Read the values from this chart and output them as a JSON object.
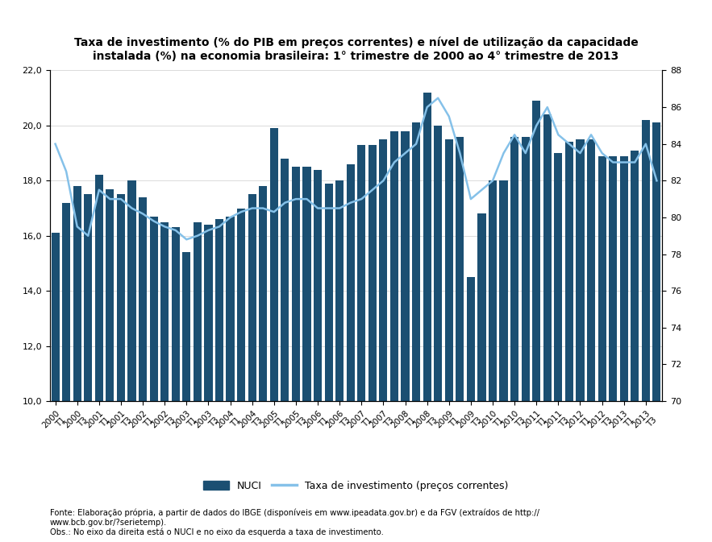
{
  "title": "Taxa de investimento (% do PIB em preços correntes) e nível de utilização da capacidade\ninstalada (%) na economia brasileira: 1° trimestre de 2000 ao 4° trimestre de 2013",
  "bar_color": "#1b4f72",
  "line_color": "#85c1e9",
  "left_ylim": [
    10.0,
    22.0
  ],
  "right_ylim": [
    70,
    88
  ],
  "left_yticks": [
    10.0,
    12.0,
    14.0,
    16.0,
    18.0,
    20.0,
    22.0
  ],
  "right_yticks": [
    70,
    72,
    74,
    76,
    78,
    80,
    82,
    84,
    86,
    88
  ],
  "source_text": "Fonte: Elaboração própria, a partir de dados do IBGE (disponíveis em www.ipeadata.gov.br) e da FGV (extraídos de http://\nwww.bcb.gov.br/?serietemp).\nObs.: No eixo da direita está o NUCI e no eixo da esquerda a taxa de investimento.",
  "legend_nuci": "NUCI",
  "legend_taxa": "Taxa de investimento (preços correntes)",
  "background_color": "#ffffff",
  "inv_all": [
    16.1,
    17.2,
    17.8,
    17.5,
    18.2,
    17.7,
    17.5,
    18.0,
    17.4,
    16.7,
    16.5,
    16.3,
    15.4,
    16.5,
    16.4,
    16.6,
    16.7,
    17.0,
    17.5,
    17.8,
    19.9,
    18.8,
    18.5,
    18.5,
    18.4,
    17.9,
    18.0,
    18.6,
    19.3,
    19.3,
    19.5,
    19.8,
    19.8,
    20.1,
    21.2,
    20.0,
    19.5,
    19.6,
    14.5,
    16.8,
    18.0,
    18.0,
    19.6,
    19.6,
    20.9,
    20.4,
    19.0,
    19.4,
    19.5,
    19.5,
    18.9,
    18.9,
    18.9,
    19.1,
    20.2,
    20.1
  ],
  "nuci_all": [
    84.0,
    82.5,
    79.5,
    79.0,
    81.5,
    81.0,
    81.0,
    80.5,
    80.2,
    79.8,
    79.5,
    79.3,
    78.8,
    79.0,
    79.3,
    79.5,
    80.0,
    80.3,
    80.5,
    80.5,
    80.3,
    80.8,
    81.0,
    81.0,
    80.5,
    80.5,
    80.5,
    80.8,
    81.0,
    81.5,
    82.0,
    83.0,
    83.5,
    84.0,
    86.0,
    86.5,
    85.5,
    83.5,
    81.0,
    81.5,
    82.0,
    83.5,
    84.5,
    83.5,
    85.0,
    86.0,
    84.5,
    84.0,
    83.5,
    84.5,
    83.5,
    83.0,
    83.0,
    83.0,
    84.0,
    82.0
  ]
}
